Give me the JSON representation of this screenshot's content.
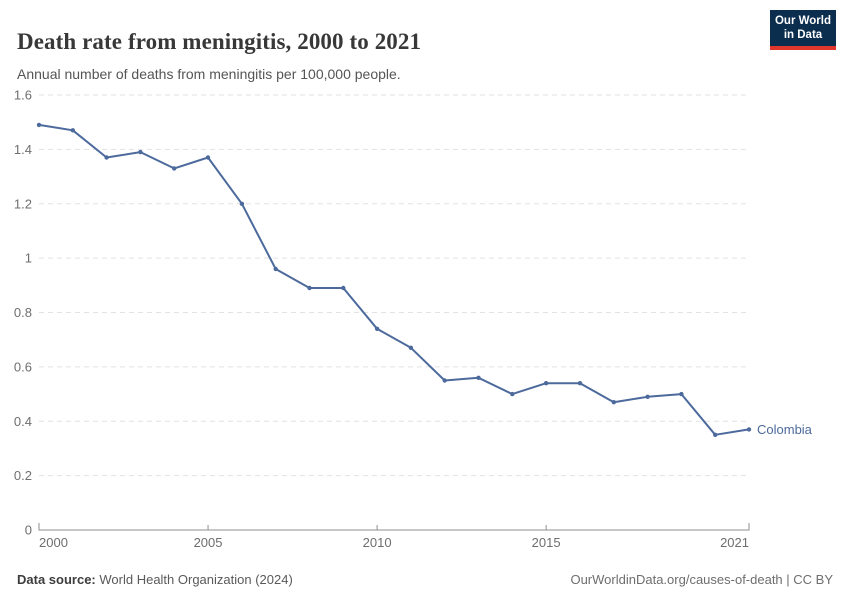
{
  "header": {
    "title": "Death rate from meningitis, 2000 to 2021",
    "subtitle": "Annual number of deaths from meningitis per 100,000 people.",
    "logo": {
      "line1": "Our World",
      "line2": "in Data"
    }
  },
  "chart_data": {
    "type": "line",
    "title": "Death rate from meningitis, 2000 to 2021",
    "subtitle": "Annual number of deaths from meningitis per 100,000 people.",
    "xlabel": "",
    "ylabel": "",
    "x": [
      2000,
      2001,
      2002,
      2003,
      2004,
      2005,
      2006,
      2007,
      2008,
      2009,
      2010,
      2011,
      2012,
      2013,
      2014,
      2015,
      2016,
      2017,
      2018,
      2019,
      2020,
      2021
    ],
    "series": [
      {
        "name": "Colombia",
        "color": "#4C6A9C",
        "values": [
          1.49,
          1.47,
          1.37,
          1.39,
          1.33,
          1.37,
          1.2,
          0.96,
          0.89,
          0.89,
          0.74,
          0.67,
          0.55,
          0.56,
          0.5,
          0.54,
          0.54,
          0.47,
          0.49,
          0.5,
          0.35,
          0.37
        ]
      }
    ],
    "x_ticks": [
      2000,
      2005,
      2010,
      2015,
      2021
    ],
    "y_ticks": [
      0,
      0.2,
      0.4,
      0.6,
      0.8,
      1,
      1.2,
      1.4,
      1.6
    ],
    "xlim": [
      2000,
      2021
    ],
    "ylim": [
      0,
      1.6
    ],
    "grid": true,
    "legend_position": "end-of-line"
  },
  "footer": {
    "source_label": "Data source:",
    "source_text": "World Health Organization (2024)",
    "attribution": "OurWorldinData.org/causes-of-death | CC BY"
  },
  "colors": {
    "line": "#4C6A9C",
    "grid": "#e2e2e2",
    "axis": "#8f8f8f",
    "tick_text": "#6e6e6e",
    "logo_bg": "#0b2d4e",
    "logo_accent": "#e0362c"
  }
}
